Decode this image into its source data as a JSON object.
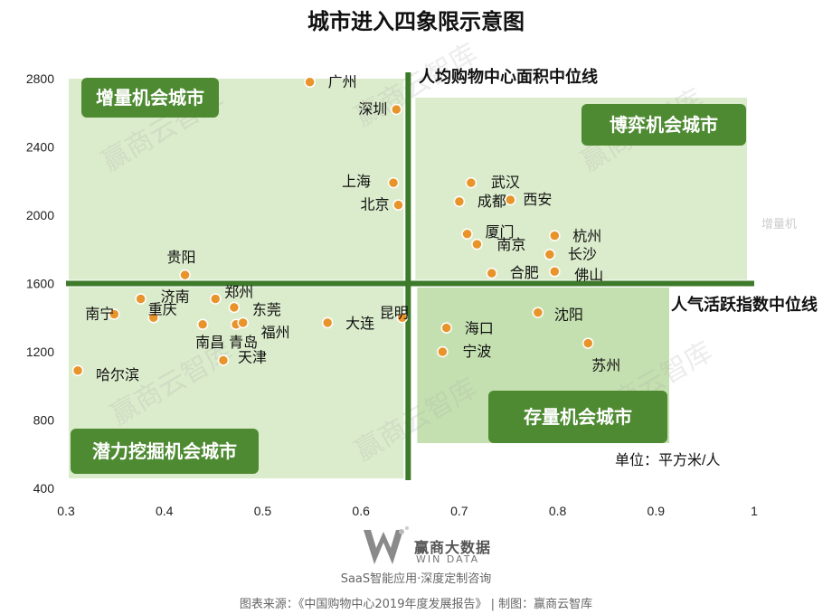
{
  "title": "城市进入四象限示意图",
  "chart_data": {
    "type": "scatter",
    "xlim": [
      0.3,
      1
    ],
    "ylim": [
      400,
      2800
    ],
    "x_ticks": [
      "0.3",
      "0.4",
      "0.5",
      "0.6",
      "0.7",
      "0.8",
      "0.9",
      "1"
    ],
    "y_ticks": [
      "2800",
      "2400",
      "2000",
      "1600",
      "1200",
      "800",
      "400"
    ],
    "x_tick_values": [
      0.3,
      0.4,
      0.5,
      0.6,
      0.7,
      0.8,
      0.9,
      1.0
    ],
    "y_tick_values": [
      2800,
      2400,
      2000,
      1600,
      1200,
      800,
      400
    ],
    "median_x": 0.648,
    "median_y": 1600,
    "vline_label": "人均购物中心面积中位线",
    "hline_label": "人气活跃指数中位线",
    "unit_label": "单位：平方米/人",
    "point_color": "#e8942a",
    "line_color": "#3d7a2a",
    "quadrant_fill": "#dbeccc",
    "quadrant_fill_lower_right": "#c5e0b0",
    "badge_color": "#4e8a32",
    "quadrants": [
      {
        "label": "增量机会城市",
        "x_range": [
          0.3,
          0.648
        ],
        "y_range": [
          1600,
          2800
        ]
      },
      {
        "label": "博弈机会城市",
        "x_range": [
          0.648,
          1.0
        ],
        "y_range": [
          1600,
          2800
        ]
      },
      {
        "label": "潜力挖掘机会城市",
        "x_range": [
          0.3,
          0.648
        ],
        "y_range": [
          400,
          1600
        ]
      },
      {
        "label": "存量机会城市",
        "x_range": [
          0.648,
          0.9
        ],
        "y_range": [
          400,
          1600
        ]
      }
    ],
    "points": [
      {
        "name": "广州",
        "x": 0.548,
        "y": 2780
      },
      {
        "name": "深圳",
        "x": 0.636,
        "y": 2620
      },
      {
        "name": "上海",
        "x": 0.633,
        "y": 2190
      },
      {
        "name": "北京",
        "x": 0.638,
        "y": 2060
      },
      {
        "name": "武汉",
        "x": 0.712,
        "y": 2190
      },
      {
        "name": "成都",
        "x": 0.7,
        "y": 2080
      },
      {
        "name": "西安",
        "x": 0.752,
        "y": 2090
      },
      {
        "name": "厦门",
        "x": 0.708,
        "y": 1890
      },
      {
        "name": "南京",
        "x": 0.718,
        "y": 1830
      },
      {
        "name": "杭州",
        "x": 0.797,
        "y": 1880
      },
      {
        "name": "长沙",
        "x": 0.792,
        "y": 1770
      },
      {
        "name": "合肥",
        "x": 0.733,
        "y": 1660
      },
      {
        "name": "佛山",
        "x": 0.797,
        "y": 1670
      },
      {
        "name": "贵阳",
        "x": 0.421,
        "y": 1650
      },
      {
        "name": "济南",
        "x": 0.376,
        "y": 1510
      },
      {
        "name": "郑州",
        "x": 0.452,
        "y": 1510
      },
      {
        "name": "重庆",
        "x": 0.389,
        "y": 1400
      },
      {
        "name": "南宁",
        "x": 0.349,
        "y": 1420
      },
      {
        "name": "东莞",
        "x": 0.471,
        "y": 1460
      },
      {
        "name": "南昌",
        "x": 0.439,
        "y": 1360
      },
      {
        "name": "青岛",
        "x": 0.473,
        "y": 1360
      },
      {
        "name": "福州",
        "x": 0.48,
        "y": 1370
      },
      {
        "name": "大连",
        "x": 0.566,
        "y": 1370
      },
      {
        "name": "昆明",
        "x": 0.642,
        "y": 1400
      },
      {
        "name": "天津",
        "x": 0.46,
        "y": 1150
      },
      {
        "name": "哈尔滨",
        "x": 0.312,
        "y": 1090
      },
      {
        "name": "海口",
        "x": 0.687,
        "y": 1340
      },
      {
        "name": "宁波",
        "x": 0.683,
        "y": 1200
      },
      {
        "name": "沈阳",
        "x": 0.78,
        "y": 1430
      },
      {
        "name": "苏州",
        "x": 0.831,
        "y": 1250
      }
    ]
  },
  "watermark_texts": [
    "赢商云智库",
    "增量机"
  ],
  "logo": {
    "name": "赢商大数据",
    "sub": "WIN DATA"
  },
  "tagline": "SaaS智能应用·深度定制咨询",
  "footer": "图表来源：《中国购物中心2019年度发展报告》 | 制图：赢商云智库"
}
